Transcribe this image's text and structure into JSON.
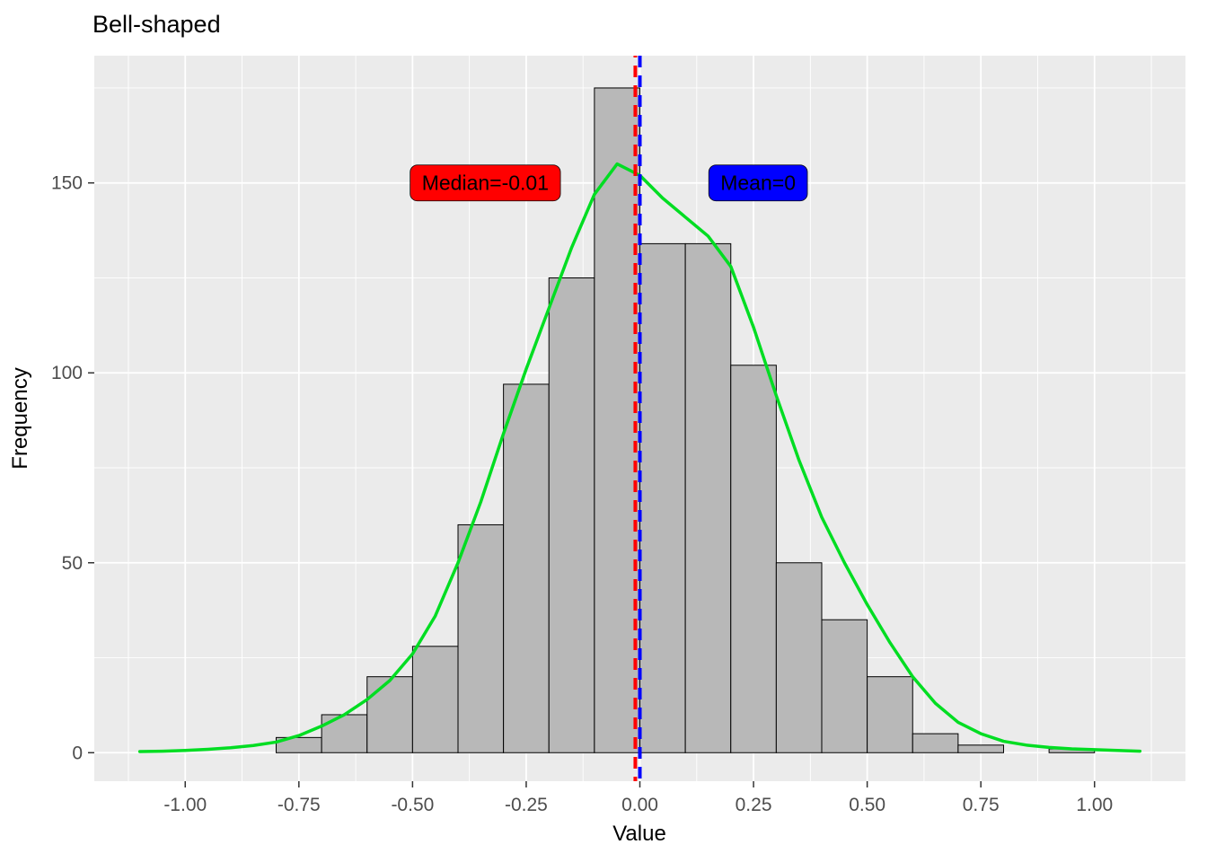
{
  "title": "Bell-shaped",
  "chart_data": {
    "type": "histogram",
    "title": "Bell-shaped",
    "xlabel": "Value",
    "ylabel": "Frequency",
    "x_ticks": [
      -1.0,
      -0.75,
      -0.5,
      -0.25,
      0.0,
      0.25,
      0.5,
      0.75,
      1.0
    ],
    "x_tick_labels": [
      "-1.00",
      "-0.75",
      "-0.50",
      "-0.25",
      "0.00",
      "0.25",
      "0.50",
      "0.75",
      "1.00"
    ],
    "x_minor_ticks": [
      -1.125,
      -0.875,
      -0.625,
      -0.375,
      -0.125,
      0.125,
      0.375,
      0.625,
      0.875,
      1.125
    ],
    "y_ticks": [
      0,
      50,
      100,
      150
    ],
    "y_tick_labels": [
      "0",
      "50",
      "100",
      "150"
    ],
    "y_minor_ticks": [
      25,
      75,
      125,
      175
    ],
    "xlim": [
      -1.2,
      1.2
    ],
    "ylim": [
      -7.5,
      183.5
    ],
    "bin_width": 0.1,
    "bars": [
      {
        "x0": -0.8,
        "x1": -0.7,
        "count": 4
      },
      {
        "x0": -0.7,
        "x1": -0.6,
        "count": 10
      },
      {
        "x0": -0.6,
        "x1": -0.5,
        "count": 20
      },
      {
        "x0": -0.5,
        "x1": -0.4,
        "count": 28
      },
      {
        "x0": -0.4,
        "x1": -0.3,
        "count": 60
      },
      {
        "x0": -0.3,
        "x1": -0.2,
        "count": 97
      },
      {
        "x0": -0.2,
        "x1": -0.1,
        "count": 125
      },
      {
        "x0": -0.1,
        "x1": 0.0,
        "count": 175
      },
      {
        "x0": 0.0,
        "x1": 0.1,
        "count": 134
      },
      {
        "x0": 0.1,
        "x1": 0.2,
        "count": 134
      },
      {
        "x0": 0.2,
        "x1": 0.3,
        "count": 102
      },
      {
        "x0": 0.3,
        "x1": 0.4,
        "count": 50
      },
      {
        "x0": 0.4,
        "x1": 0.5,
        "count": 35
      },
      {
        "x0": 0.5,
        "x1": 0.6,
        "count": 20
      },
      {
        "x0": 0.6,
        "x1": 0.7,
        "count": 5
      },
      {
        "x0": 0.7,
        "x1": 0.8,
        "count": 2
      },
      {
        "x0": 0.9,
        "x1": 1.0,
        "count": 1
      }
    ],
    "density_curve": {
      "color": "#00DD22",
      "points": [
        [
          -1.1,
          0.3
        ],
        [
          -1.05,
          0.4
        ],
        [
          -1.0,
          0.6
        ],
        [
          -0.95,
          0.9
        ],
        [
          -0.9,
          1.3
        ],
        [
          -0.85,
          1.9
        ],
        [
          -0.8,
          2.8
        ],
        [
          -0.75,
          4.5
        ],
        [
          -0.7,
          7.0
        ],
        [
          -0.65,
          10.0
        ],
        [
          -0.6,
          14.0
        ],
        [
          -0.55,
          19.0
        ],
        [
          -0.5,
          26.0
        ],
        [
          -0.45,
          36.0
        ],
        [
          -0.4,
          50.0
        ],
        [
          -0.35,
          66.0
        ],
        [
          -0.3,
          84.0
        ],
        [
          -0.25,
          101.0
        ],
        [
          -0.2,
          117.0
        ],
        [
          -0.15,
          133.0
        ],
        [
          -0.1,
          147.0
        ],
        [
          -0.05,
          155.0
        ],
        [
          0.0,
          152.0
        ],
        [
          0.05,
          146.0
        ],
        [
          0.1,
          141.0
        ],
        [
          0.15,
          136.0
        ],
        [
          0.2,
          128.0
        ],
        [
          0.25,
          112.0
        ],
        [
          0.3,
          94.0
        ],
        [
          0.35,
          77.0
        ],
        [
          0.4,
          62.0
        ],
        [
          0.45,
          50.0
        ],
        [
          0.5,
          39.0
        ],
        [
          0.55,
          29.0
        ],
        [
          0.6,
          20.0
        ],
        [
          0.65,
          13.0
        ],
        [
          0.7,
          8.0
        ],
        [
          0.75,
          5.0
        ],
        [
          0.8,
          3.0
        ],
        [
          0.85,
          2.0
        ],
        [
          0.9,
          1.4
        ],
        [
          0.95,
          1.0
        ],
        [
          1.0,
          0.8
        ],
        [
          1.05,
          0.6
        ],
        [
          1.1,
          0.4
        ]
      ]
    },
    "mean": {
      "value": 0.0,
      "label": "Mean=0",
      "color": "#0000FF"
    },
    "median": {
      "value": -0.01,
      "label": "Median=-0.01",
      "color": "#FF0000"
    },
    "mean_label_pos": {
      "x": 0.26,
      "y": 150
    },
    "median_label_pos": {
      "x": -0.34,
      "y": 150
    }
  },
  "style": {
    "panel_bg": "#EBEBEB",
    "grid_color": "#FFFFFF",
    "bar_fill": "#B8B8B8",
    "bar_stroke": "#000000",
    "tick_mark_color": "#333333",
    "tick_text_color": "#4D4D4D",
    "annotation_text_color": "#000000"
  }
}
